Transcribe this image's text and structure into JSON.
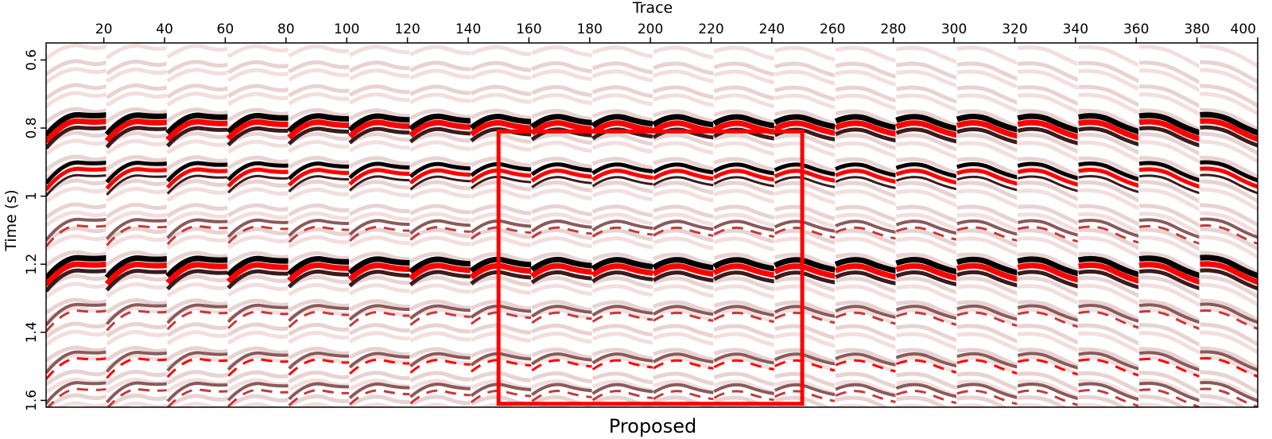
{
  "chart_data": {
    "type": "heatmap",
    "title": "",
    "xlabel": "Trace",
    "ylabel": "Time (s)",
    "caption": "Proposed",
    "xlim": [
      1,
      400
    ],
    "ylim": [
      0.55,
      1.62
    ],
    "y_inverted": true,
    "x_ticks": [
      20,
      40,
      60,
      80,
      100,
      120,
      140,
      160,
      180,
      200,
      220,
      240,
      260,
      280,
      300,
      320,
      340,
      360,
      380,
      400
    ],
    "y_ticks": [
      0.6,
      0.8,
      1,
      1.2,
      1.4,
      1.6
    ],
    "x_tick_labels": [
      "20",
      "40",
      "60",
      "80",
      "100",
      "120",
      "140",
      "160",
      "180",
      "200",
      "220",
      "240",
      "260",
      "280",
      "300",
      "320",
      "340",
      "360",
      "380",
      "400"
    ],
    "y_tick_labels": [
      "0.6",
      "0.8",
      "1",
      "1.2",
      "1.4",
      "1.6"
    ],
    "gather_width_traces": 20,
    "gather_count": 20,
    "colormap": {
      "negative": "#000000",
      "zero": "#ffffff",
      "positive": "#ff0000",
      "mid_dark": "#8a5a5a",
      "mid_light": "#f3dede"
    },
    "events": [
      {
        "t0": 0.78,
        "polarity": "strong",
        "wide": true
      },
      {
        "t0": 0.92,
        "polarity": "strong",
        "wide": false
      },
      {
        "t0": 1.08,
        "polarity": "weak",
        "wide": false
      },
      {
        "t0": 1.2,
        "polarity": "strong",
        "wide": true
      },
      {
        "t0": 1.33,
        "polarity": "weak",
        "wide": false
      },
      {
        "t0": 1.47,
        "polarity": "weak",
        "wide": false
      },
      {
        "t0": 1.56,
        "polarity": "weak",
        "wide": false
      }
    ],
    "annotations": [
      {
        "type": "rectangle",
        "color": "#ff0000",
        "x0": 150,
        "x1": 250,
        "y0": 0.81,
        "y1": 1.61
      }
    ]
  }
}
